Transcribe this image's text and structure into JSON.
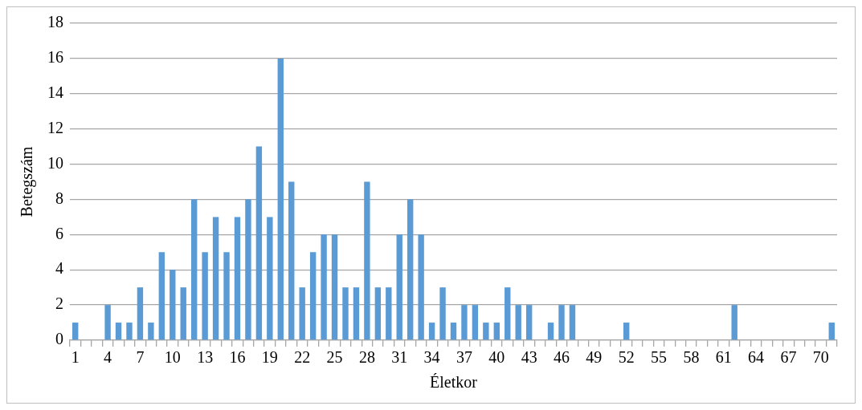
{
  "chart_data": {
    "type": "bar",
    "xlabel": "Életkor",
    "ylabel": "Betegszám",
    "categories": [
      "1",
      null,
      null,
      "4",
      null,
      null,
      "7",
      null,
      null,
      "10",
      null,
      null,
      "13",
      null,
      null,
      "16",
      null,
      null,
      "19",
      null,
      null,
      "22",
      null,
      null,
      "25",
      null,
      null,
      "28",
      null,
      null,
      "31",
      null,
      null,
      "34",
      null,
      null,
      "37",
      null,
      null,
      "40",
      null,
      null,
      "43",
      null,
      null,
      "46",
      null,
      null,
      "49",
      null,
      null,
      "52",
      null,
      null,
      "55",
      null,
      null,
      "58",
      null,
      null,
      "61",
      null,
      null,
      "64",
      null,
      null,
      "67",
      null,
      null,
      "70",
      null
    ],
    "values": [
      1,
      0,
      0,
      2,
      1,
      1,
      3,
      1,
      5,
      4,
      3,
      8,
      5,
      7,
      5,
      7,
      8,
      11,
      7,
      16,
      9,
      3,
      5,
      6,
      6,
      3,
      3,
      9,
      3,
      3,
      6,
      8,
      6,
      1,
      3,
      1,
      2,
      2,
      1,
      1,
      3,
      2,
      2,
      0,
      1,
      2,
      2,
      0,
      0,
      0,
      0,
      1,
      0,
      0,
      0,
      0,
      0,
      0,
      0,
      0,
      0,
      2,
      0,
      0,
      0,
      0,
      0,
      0,
      0,
      0,
      1
    ],
    "color": "#5b9bd5",
    "ylim": [
      0,
      18
    ],
    "yticks": [
      0,
      2,
      4,
      6,
      8,
      10,
      12,
      14,
      16,
      18
    ],
    "grid": "y",
    "legend": false
  }
}
